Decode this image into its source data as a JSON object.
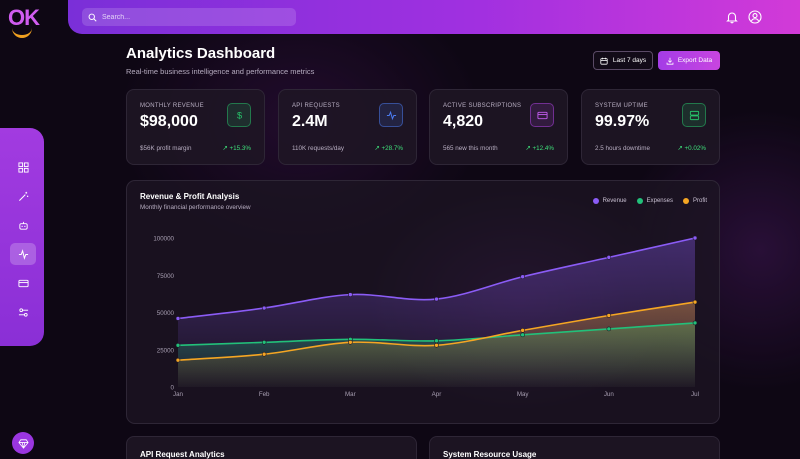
{
  "logo": {
    "text": "OK"
  },
  "search": {
    "placeholder": "Search..."
  },
  "header": {
    "title": "Analytics Dashboard",
    "subtitle": "Real-time business intelligence and performance metrics",
    "date_range_label": "Last 7 days",
    "export_label": "Export Data"
  },
  "stats": [
    {
      "label": "MONTHLY REVENUE",
      "value": "$98,000",
      "sub": "$56K profit margin",
      "delta": "+15.3%",
      "icon": "dollar-icon",
      "color": "#27c36a"
    },
    {
      "label": "API REQUESTS",
      "value": "2.4M",
      "sub": "110K requests/day",
      "delta": "+28.7%",
      "icon": "activity-icon",
      "color": "#4b7bf0"
    },
    {
      "label": "ACTIVE SUBSCRIPTIONS",
      "value": "4,820",
      "sub": "565 new this month",
      "delta": "+12.4%",
      "icon": "credit-card-icon",
      "color": "#b244e6"
    },
    {
      "label": "SYSTEM UPTIME",
      "value": "99.97%",
      "sub": "2.5 hours downtime",
      "delta": "+0.02%",
      "icon": "server-icon",
      "color": "#27c36a"
    }
  ],
  "chart_panel": {
    "title": "Revenue & Profit Analysis",
    "subtitle": "Monthly financial performance overview"
  },
  "chart_data": {
    "type": "line",
    "categories": [
      "Jan",
      "Feb",
      "Mar",
      "Apr",
      "May",
      "Jun",
      "Jul"
    ],
    "ylim": [
      0,
      100000
    ],
    "yticks": [
      "0",
      "25000",
      "50000",
      "75000",
      "100000"
    ],
    "ytick_values": [
      0,
      25000,
      50000,
      75000,
      100000
    ],
    "series": [
      {
        "name": "Revenue",
        "color": "#8b5cf6",
        "values": [
          46000,
          53000,
          62000,
          59000,
          74000,
          87000,
          100000
        ]
      },
      {
        "name": "Expenses",
        "color": "#22c07a",
        "values": [
          28000,
          30000,
          32000,
          31000,
          35000,
          39000,
          43000
        ]
      },
      {
        "name": "Profit",
        "color": "#f5a623",
        "values": [
          18000,
          22000,
          30000,
          28000,
          38000,
          48000,
          57000
        ]
      }
    ],
    "grid": false,
    "legend": "top-right"
  },
  "bottom_cards": [
    {
      "title": "API Request Analytics"
    },
    {
      "title": "System Resource Usage"
    }
  ]
}
